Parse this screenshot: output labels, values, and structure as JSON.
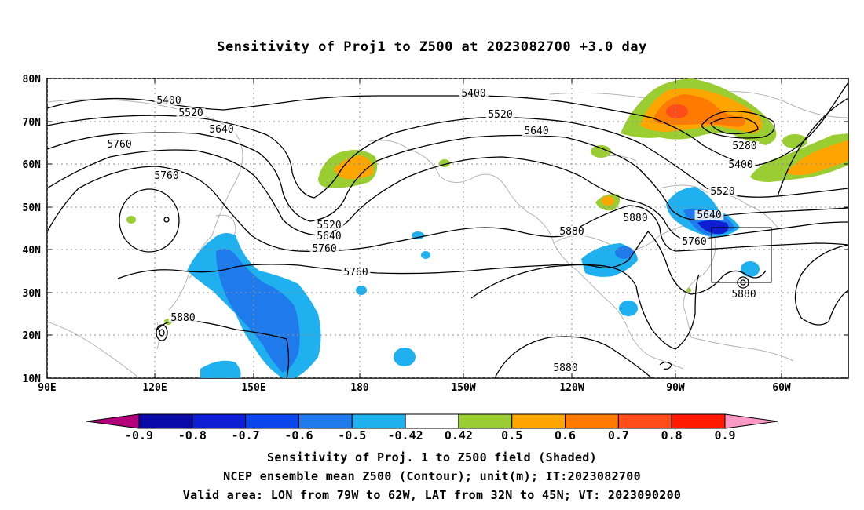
{
  "title": "Sensitivity of Proj1 to Z500 at 2023082700 +3.0 day",
  "lat_labels": [
    "80N",
    "70N",
    "60N",
    "50N",
    "40N",
    "30N",
    "20N",
    "10N"
  ],
  "lon_labels": [
    "90E",
    "120E",
    "150E",
    "180",
    "150W",
    "120W",
    "90W",
    "60W"
  ],
  "contour_labels": [
    "5400",
    "5520",
    "5640",
    "5760",
    "5760",
    "5400",
    "5520",
    "5640",
    "5280",
    "5400",
    "5520",
    "5640",
    "5760",
    "5880",
    "5520",
    "5640",
    "5760",
    "5880",
    "5760",
    "5880",
    "5880",
    "5880"
  ],
  "colorbar": {
    "colors": [
      "#b5007c",
      "#0a0aa8",
      "#0e1ed2",
      "#0a46ea",
      "#1f7bec",
      "#1fb0f0",
      "#ffffff",
      "#9acd32",
      "#ffa500",
      "#ff7a00",
      "#ff4d1a",
      "#ff1a00",
      "#ff9ac6"
    ],
    "labels": [
      "-0.9",
      "-0.8",
      "-0.7",
      "-0.6",
      "-0.5",
      "-0.42",
      "0.42",
      "0.5",
      "0.6",
      "0.7",
      "0.8",
      "0.9"
    ]
  },
  "captions": [
    "Sensitivity of Proj. 1 to Z500 field (Shaded)",
    "NCEP ensemble mean Z500 (Contour); unit(m); IT:2023082700",
    "Valid area: LON from 79W to 62W, LAT from 32N to 45N; VT: 2023090200"
  ]
}
